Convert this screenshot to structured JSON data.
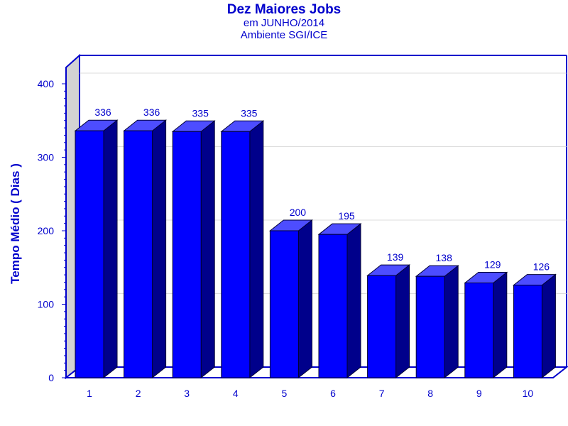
{
  "chart_data": {
    "type": "bar",
    "title": "Dez Maiores Jobs",
    "subtitle": "em JUNHO/2014",
    "subtitle2": "Ambiente SGI/ICE",
    "xlabel": "",
    "ylabel": "Tempo Médio ( Dias )",
    "categories": [
      "1",
      "2",
      "3",
      "4",
      "5",
      "6",
      "7",
      "8",
      "9",
      "10"
    ],
    "values": [
      336,
      336,
      335,
      335,
      200,
      195,
      139,
      138,
      129,
      126
    ],
    "yticks": [
      "0",
      "100",
      "200",
      "300",
      "400"
    ],
    "ylim": [
      0,
      400
    ],
    "grid": true,
    "three_d": true,
    "colors": {
      "bar_front": "#0000ff",
      "bar_top": "#4d4dff",
      "bar_side": "#00008b",
      "text": "#0000cc",
      "axis": "#0000cc",
      "wall": "#d3d3d3"
    }
  }
}
